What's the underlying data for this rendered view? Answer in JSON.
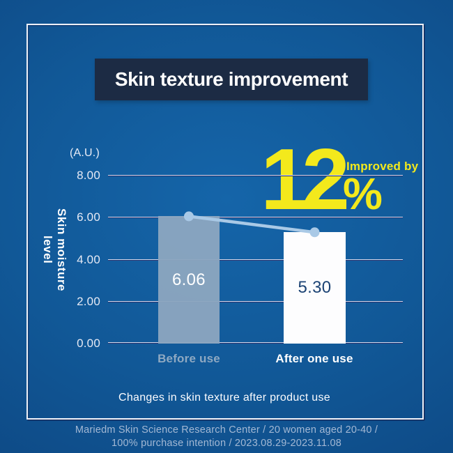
{
  "chart_data": {
    "type": "bar",
    "title": "Skin texture improvement",
    "unit_label": "(A.U.)",
    "ylabel": "Skin moisture level",
    "caption": "Changes in skin texture after product use",
    "categories": [
      "Before use",
      "After one use"
    ],
    "values": [
      6.06,
      5.3
    ],
    "value_labels": [
      "6.06",
      "5.30"
    ],
    "ylim": [
      0,
      8
    ],
    "yticks": [
      "8.00",
      "6.00",
      "4.00",
      "2.00",
      "0.00"
    ],
    "ytick_values": [
      8,
      6,
      4,
      2,
      0
    ],
    "grid": true,
    "legend": "none",
    "annotation": {
      "number": "12",
      "percent_sign": "%",
      "label": "Improved by"
    }
  },
  "footer": {
    "line1": "Mariedm Skin Science Research Center / 20 women aged 20-40 /",
    "line2": "100% purchase intention / 2023.08.29-2023.11.08"
  },
  "colors": {
    "background_center": "#1565a9",
    "background_edge": "#0b3a6e",
    "frame_border": "#eef1f8",
    "title_box_bg": "#1c2b44",
    "title_text": "#ffffff",
    "bar_before": "#8ba6bf",
    "bar_after": "#fdfdfe",
    "value_text_before": "#ffffff",
    "value_text_after": "#1c4374",
    "connector": "#a9c9e6",
    "accent_yellow": "#f3e91c",
    "gridline_light": "#d3daee",
    "gridline_dark": "#28336f",
    "xlabel_before": "#8fa9c2",
    "xlabel_after": "#ffffff",
    "footer_text": "#a3b8d4"
  }
}
